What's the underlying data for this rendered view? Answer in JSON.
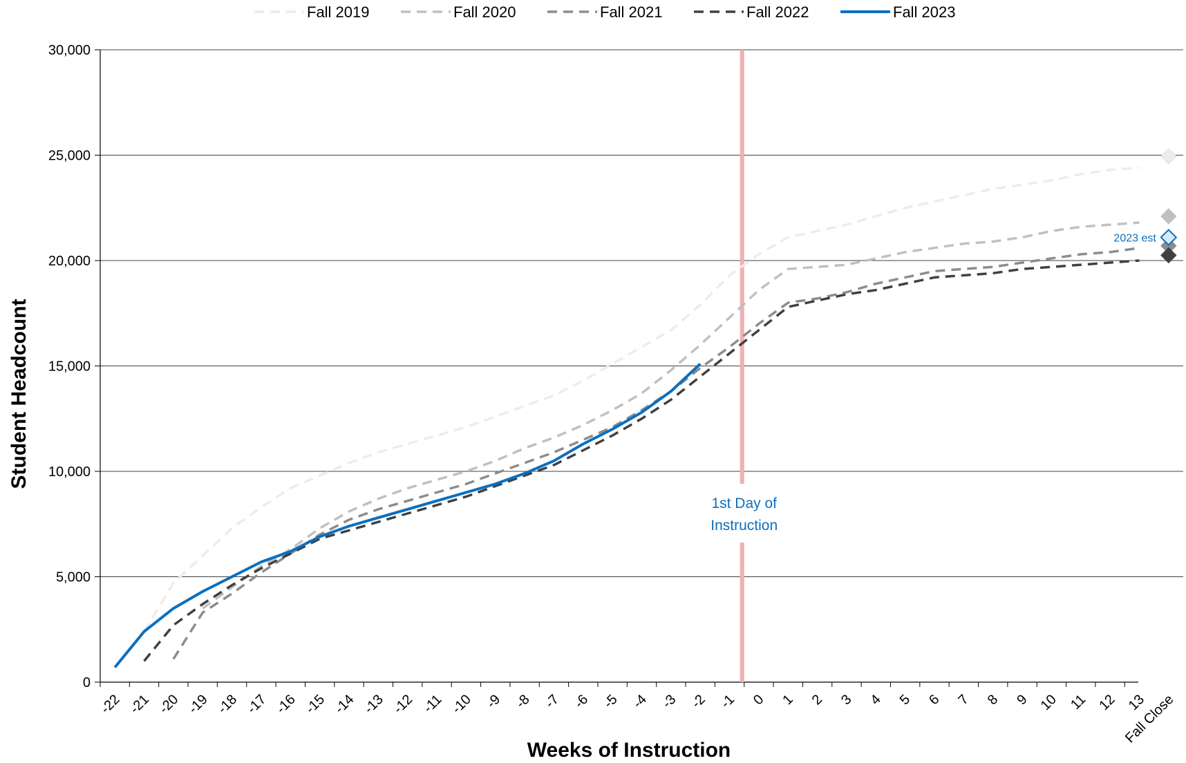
{
  "chart_data": {
    "type": "line",
    "ylabel": "Student Headcount",
    "xlabel": "Weeks of Instruction",
    "ylim": [
      0,
      30000
    ],
    "y_ticks": [
      0,
      5000,
      10000,
      15000,
      20000,
      25000,
      30000
    ],
    "y_tick_labels": [
      "0",
      "5,000",
      "10,000",
      "15,000",
      "20,000",
      "25,000",
      "30,000"
    ],
    "categories": [
      "-22",
      "-21",
      "-20",
      "-19",
      "-18",
      "-17",
      "-16",
      "-15",
      "-14",
      "-13",
      "-12",
      "-11",
      "-10",
      "-9",
      "-8",
      "-7",
      "-6",
      "-5",
      "-4",
      "-3",
      "-2",
      "-1",
      "0",
      "1",
      "2",
      "3",
      "4",
      "5",
      "6",
      "7",
      "8",
      "9",
      "10",
      "11",
      "12",
      "13",
      "Fall Close"
    ],
    "grid": "horizontal",
    "legend_position": "top",
    "series": [
      {
        "name": "Fall 2019",
        "color": "#ececec",
        "style": "dashed",
        "values": [
          null,
          2400,
          4700,
          6000,
          7300,
          8300,
          9200,
          9800,
          10400,
          10900,
          11300,
          11700,
          12100,
          12600,
          13100,
          13600,
          14300,
          15100,
          15900,
          16700,
          17900,
          19300,
          20300,
          21100,
          21400,
          21700,
          22100,
          22500,
          22800,
          23100,
          23400,
          23600,
          23800,
          24100,
          24300,
          24400,
          null
        ],
        "final_marker": 24950
      },
      {
        "name": "Fall 2020",
        "color": "#c0c0c0",
        "style": "dashed",
        "values": [
          null,
          null,
          null,
          3500,
          4500,
          5500,
          6300,
          7300,
          8100,
          8700,
          9200,
          9600,
          10000,
          10500,
          11100,
          11600,
          12200,
          12900,
          13700,
          14800,
          16000,
          17300,
          18600,
          19600,
          19700,
          19800,
          20100,
          20400,
          20600,
          20800,
          20900,
          21100,
          21400,
          21600,
          21700,
          21800,
          null
        ],
        "final_marker": 22100
      },
      {
        "name": "Fall 2021",
        "color": "#8c8c8c",
        "style": "dashed",
        "values": [
          null,
          null,
          1100,
          3300,
          4200,
          5200,
          6100,
          7000,
          7700,
          8200,
          8600,
          9000,
          9400,
          9900,
          10400,
          10900,
          11500,
          12100,
          12900,
          13800,
          14900,
          15900,
          17000,
          18000,
          18200,
          18500,
          18900,
          19200,
          19500,
          19600,
          19700,
          19900,
          20100,
          20300,
          20400,
          20600,
          null
        ],
        "final_marker": 20700
      },
      {
        "name": "Fall 2022",
        "color": "#404040",
        "style": "dashed",
        "values": [
          null,
          1000,
          2700,
          3700,
          4600,
          5400,
          6100,
          6800,
          7200,
          7600,
          8000,
          8400,
          8800,
          9300,
          9800,
          10300,
          11000,
          11700,
          12500,
          13400,
          14500,
          15600,
          16700,
          17800,
          18100,
          18400,
          18600,
          18900,
          19200,
          19300,
          19400,
          19600,
          19700,
          19800,
          19900,
          20000,
          null
        ],
        "final_marker": 20250
      },
      {
        "name": "Fall 2023",
        "color": "#0b6fbf",
        "style": "solid",
        "values": [
          700,
          2400,
          3500,
          4300,
          5000,
          5700,
          6200,
          6900,
          7400,
          7800,
          8200,
          8600,
          9000,
          9400,
          9900,
          10500,
          11300,
          12000,
          12800,
          13800,
          15100,
          null,
          null,
          null,
          null,
          null,
          null,
          null,
          null,
          null,
          null,
          null,
          null,
          null,
          null,
          null,
          null
        ],
        "final_marker": 21100
      }
    ],
    "annotations": {
      "first_day": {
        "text_line1": "1st Day of",
        "text_line2": "Instruction",
        "at_week": "-0.5"
      },
      "estimate_label": "2023 est"
    }
  }
}
